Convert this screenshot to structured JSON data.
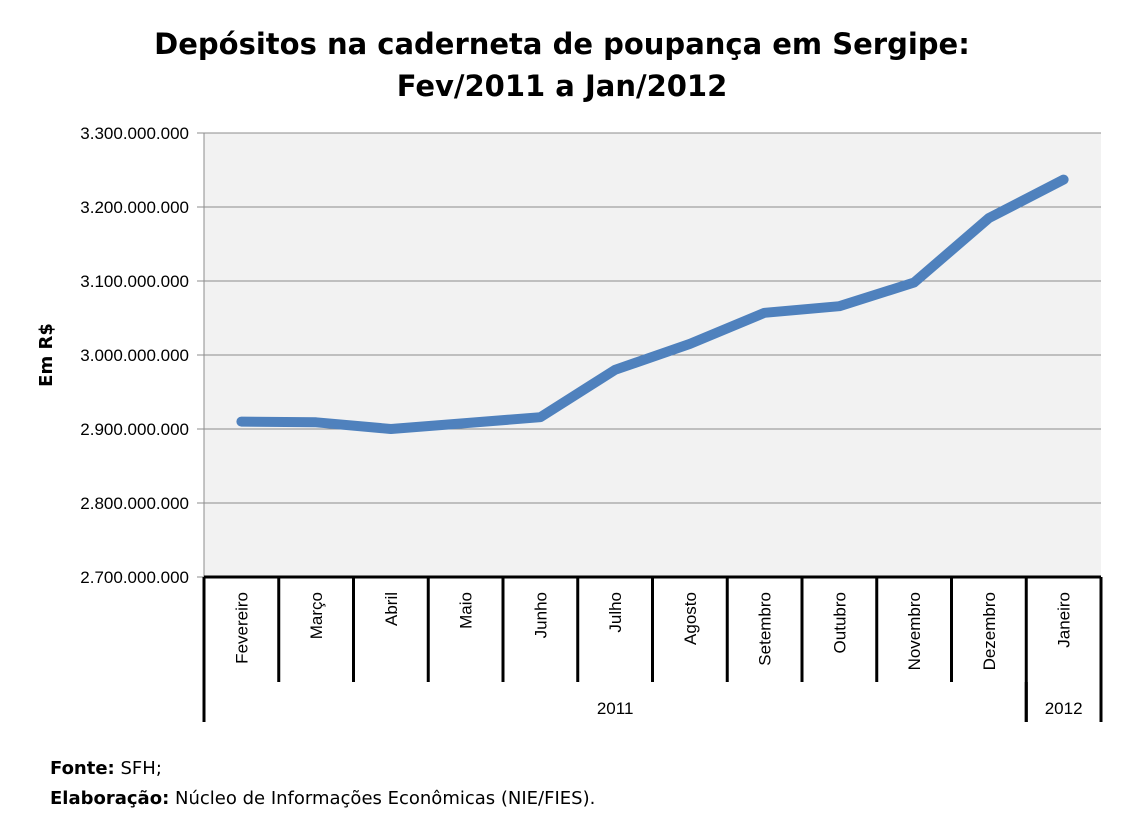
{
  "chart_data": {
    "type": "line",
    "title": [
      "Depósitos na caderneta de poupança em Sergipe:",
      "Fev/2011 a Jan/2012"
    ],
    "ylabel": "Em R$",
    "xlabel": "",
    "ylim": [
      2700000000,
      3300000000
    ],
    "ytick_values": [
      2700000000,
      2800000000,
      2900000000,
      3000000000,
      3100000000,
      3200000000,
      3300000000
    ],
    "ytick_labels": [
      "2.700.000.000",
      "2.800.000.000",
      "2.900.000.000",
      "3.000.000.000",
      "3.100.000.000",
      "3.200.000.000",
      "3.300.000.000"
    ],
    "categories": [
      "Fevereiro",
      "Março",
      "Abril",
      "Maio",
      "Junho",
      "Julho",
      "Agosto",
      "Setembro",
      "Outubro",
      "Novembro",
      "Dezembro",
      "Janeiro"
    ],
    "groups": [
      {
        "label": "2011",
        "count": 11
      },
      {
        "label": "2012",
        "count": 1
      }
    ],
    "series": [
      {
        "name": "Depósitos",
        "values": [
          2910000000,
          2909000000,
          2900000000,
          2908000000,
          2916000000,
          2980000000,
          3015000000,
          3057000000,
          3066000000,
          3098000000,
          3185000000,
          3237000000
        ]
      }
    ],
    "grid": true,
    "line_color": "#4f81bd",
    "plot_bg": "#f2f2f2"
  },
  "footer": {
    "fonte_label": "Fonte:",
    "fonte_value": "SFH;",
    "elab_label": "Elaboração:",
    "elab_value": "Núcleo de Informações Econômicas (NIE/FIES)."
  }
}
